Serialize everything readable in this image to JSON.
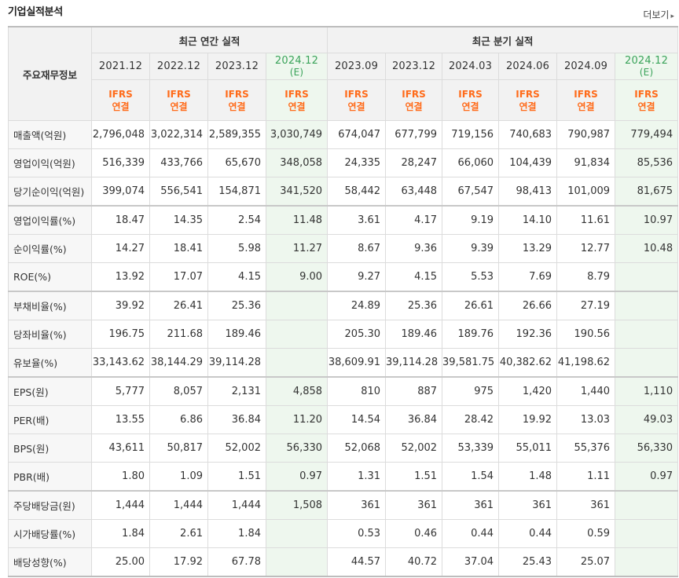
{
  "page": {
    "title": "기업실적분석",
    "more": "더보기"
  },
  "table": {
    "side_header": "주요재무정보",
    "group_annual": "최근 연간 실적",
    "group_quarter": "최근 분기 실적",
    "periods": [
      {
        "label": "2021.12",
        "estimate": ""
      },
      {
        "label": "2022.12",
        "estimate": ""
      },
      {
        "label": "2023.12",
        "estimate": ""
      },
      {
        "label": "2024.12",
        "estimate": "(E)"
      },
      {
        "label": "2023.09",
        "estimate": ""
      },
      {
        "label": "2023.12",
        "estimate": ""
      },
      {
        "label": "2024.03",
        "estimate": ""
      },
      {
        "label": "2024.06",
        "estimate": ""
      },
      {
        "label": "2024.09",
        "estimate": ""
      },
      {
        "label": "2024.12",
        "estimate": "(E)"
      }
    ],
    "basis_line1": "IFRS",
    "basis_line2": "연결",
    "rows": [
      {
        "label": "매출액(억원)",
        "values": [
          "2,796,048",
          "3,022,314",
          "2,589,355",
          "3,030,749",
          "674,047",
          "677,799",
          "719,156",
          "740,683",
          "790,987",
          "779,494"
        ]
      },
      {
        "label": "영업이익(억원)",
        "values": [
          "516,339",
          "433,766",
          "65,670",
          "348,058",
          "24,335",
          "28,247",
          "66,060",
          "104,439",
          "91,834",
          "85,536"
        ]
      },
      {
        "label": "당기순이익(억원)",
        "values": [
          "399,074",
          "556,541",
          "154,871",
          "341,520",
          "58,442",
          "63,448",
          "67,547",
          "98,413",
          "101,009",
          "81,675"
        ]
      },
      {
        "label": "영업이익률(%)",
        "values": [
          "18.47",
          "14.35",
          "2.54",
          "11.48",
          "3.61",
          "4.17",
          "9.19",
          "14.10",
          "11.61",
          "10.97"
        ]
      },
      {
        "label": "순이익률(%)",
        "values": [
          "14.27",
          "18.41",
          "5.98",
          "11.27",
          "8.67",
          "9.36",
          "9.39",
          "13.29",
          "12.77",
          "10.48"
        ]
      },
      {
        "label": "ROE(%)",
        "values": [
          "13.92",
          "17.07",
          "4.15",
          "9.00",
          "9.27",
          "4.15",
          "5.53",
          "7.69",
          "8.79",
          ""
        ]
      },
      {
        "label": "부채비율(%)",
        "values": [
          "39.92",
          "26.41",
          "25.36",
          "",
          "24.89",
          "25.36",
          "26.61",
          "26.66",
          "27.19",
          ""
        ]
      },
      {
        "label": "당좌비율(%)",
        "values": [
          "196.75",
          "211.68",
          "189.46",
          "",
          "205.30",
          "189.46",
          "189.76",
          "192.36",
          "190.56",
          ""
        ]
      },
      {
        "label": "유보율(%)",
        "values": [
          "33,143.62",
          "38,144.29",
          "39,114.28",
          "",
          "38,609.91",
          "39,114.28",
          "39,581.75",
          "40,382.62",
          "41,198.62",
          ""
        ]
      },
      {
        "label": "EPS(원)",
        "values": [
          "5,777",
          "8,057",
          "2,131",
          "4,858",
          "810",
          "887",
          "975",
          "1,420",
          "1,440",
          "1,110"
        ]
      },
      {
        "label": "PER(배)",
        "values": [
          "13.55",
          "6.86",
          "36.84",
          "11.20",
          "14.54",
          "36.84",
          "28.42",
          "19.92",
          "13.03",
          "49.03"
        ]
      },
      {
        "label": "BPS(원)",
        "values": [
          "43,611",
          "50,817",
          "52,002",
          "56,330",
          "52,068",
          "52,002",
          "53,339",
          "55,011",
          "55,376",
          "56,330"
        ]
      },
      {
        "label": "PBR(배)",
        "values": [
          "1.80",
          "1.09",
          "1.51",
          "0.97",
          "1.31",
          "1.51",
          "1.54",
          "1.48",
          "1.11",
          "0.97"
        ]
      },
      {
        "label": "주당배당금(원)",
        "values": [
          "1,444",
          "1,444",
          "1,444",
          "1,508",
          "361",
          "361",
          "361",
          "361",
          "361",
          ""
        ]
      },
      {
        "label": "시가배당률(%)",
        "values": [
          "1.84",
          "2.61",
          "1.84",
          "",
          "0.53",
          "0.46",
          "0.44",
          "0.44",
          "0.59",
          ""
        ]
      },
      {
        "label": "배당성향(%)",
        "values": [
          "25.00",
          "17.92",
          "67.78",
          "",
          "44.57",
          "40.72",
          "37.04",
          "25.43",
          "25.07",
          ""
        ]
      }
    ]
  }
}
